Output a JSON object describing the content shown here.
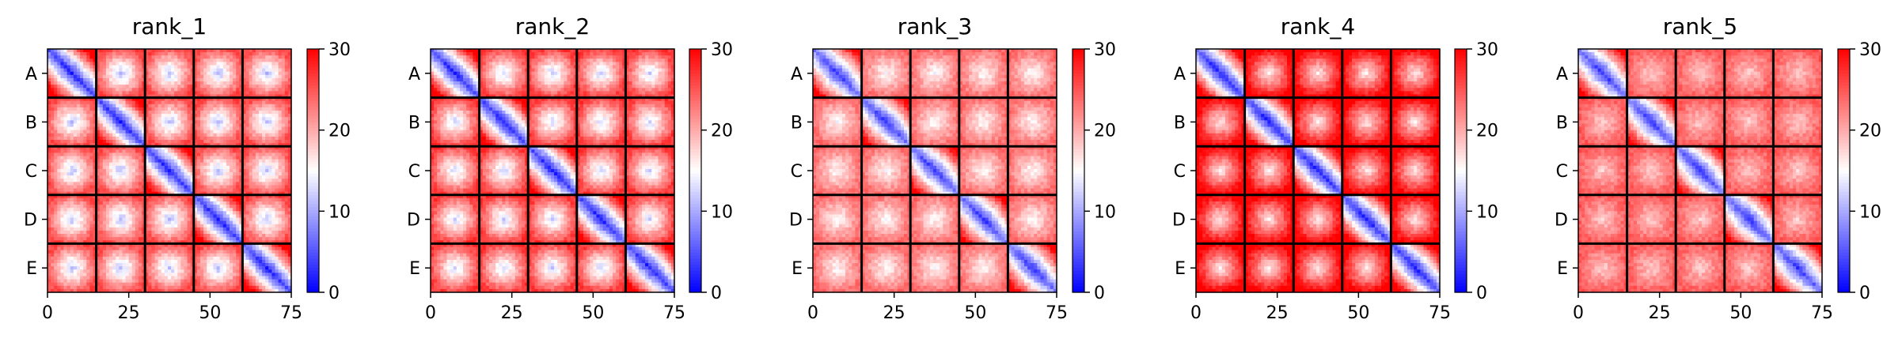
{
  "chart_data": [
    {
      "type": "heatmap",
      "title": "rank_1",
      "variant": 0,
      "labels": [
        "A",
        "B",
        "C",
        "D",
        "E"
      ],
      "xticks": [
        0,
        25,
        50,
        75
      ],
      "xlim": [
        0,
        75
      ],
      "colorbar": {
        "min": 0,
        "max": 30,
        "ticks": [
          0,
          10,
          20,
          30
        ],
        "colormap": "bwr"
      }
    },
    {
      "type": "heatmap",
      "title": "rank_2",
      "variant": 1,
      "labels": [
        "A",
        "B",
        "C",
        "D",
        "E"
      ],
      "xticks": [
        0,
        25,
        50,
        75
      ],
      "xlim": [
        0,
        75
      ],
      "colorbar": {
        "min": 0,
        "max": 30,
        "ticks": [
          0,
          10,
          20,
          30
        ],
        "colormap": "bwr"
      }
    },
    {
      "type": "heatmap",
      "title": "rank_3",
      "variant": 2,
      "labels": [
        "A",
        "B",
        "C",
        "D",
        "E"
      ],
      "xticks": [
        0,
        25,
        50,
        75
      ],
      "xlim": [
        0,
        75
      ],
      "colorbar": {
        "min": 0,
        "max": 30,
        "ticks": [
          0,
          10,
          20,
          30
        ],
        "colormap": "bwr"
      }
    },
    {
      "type": "heatmap",
      "title": "rank_4",
      "variant": 3,
      "labels": [
        "A",
        "B",
        "C",
        "D",
        "E"
      ],
      "xticks": [
        0,
        25,
        50,
        75
      ],
      "xlim": [
        0,
        75
      ],
      "colorbar": {
        "min": 0,
        "max": 30,
        "ticks": [
          0,
          10,
          20,
          30
        ],
        "colormap": "bwr"
      }
    },
    {
      "type": "heatmap",
      "title": "rank_5",
      "variant": 4,
      "labels": [
        "A",
        "B",
        "C",
        "D",
        "E"
      ],
      "xticks": [
        0,
        25,
        50,
        75
      ],
      "xlim": [
        0,
        75
      ],
      "colorbar": {
        "min": 0,
        "max": 30,
        "ticks": [
          0,
          10,
          20,
          30
        ],
        "colormap": "bwr"
      }
    }
  ],
  "colors": {
    "low": "#0000ff",
    "mid": "#ffffff",
    "high": "#ff0000",
    "divider": "#000000"
  }
}
